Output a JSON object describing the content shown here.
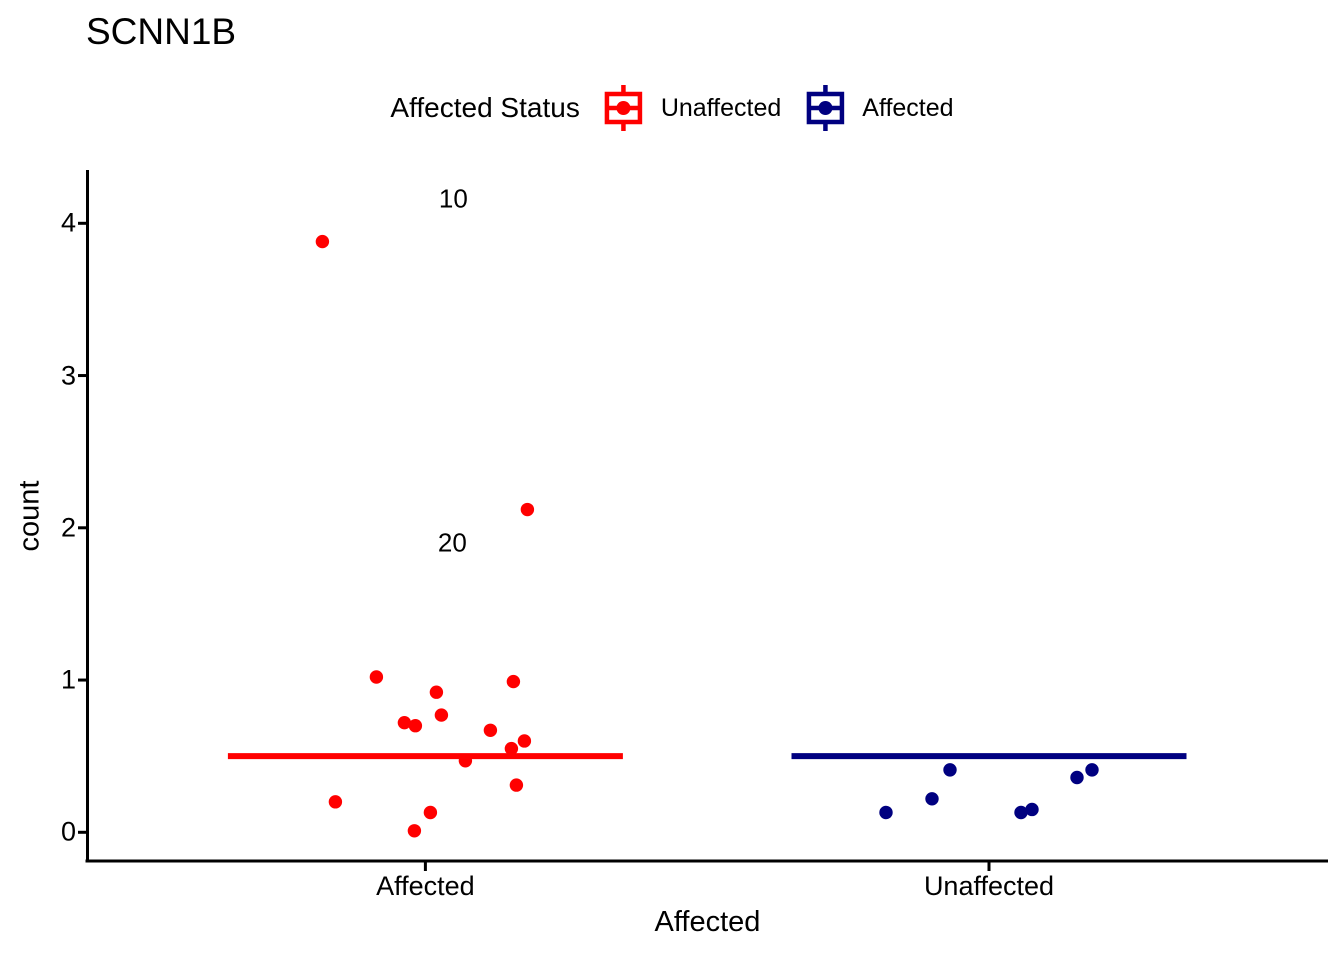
{
  "title": "SCNN1B",
  "legend": {
    "title": "Affected Status",
    "items": [
      {
        "label": "Unaffected",
        "color": "#FF0000"
      },
      {
        "label": "Affected",
        "color": "#000080"
      }
    ]
  },
  "axes": {
    "y": {
      "label": "count"
    },
    "x": {
      "label": "Affected"
    }
  },
  "chart_data": {
    "type": "scatter",
    "title": "SCNN1B",
    "xlabel": "Affected",
    "ylabel": "count",
    "categories": [
      "Affected",
      "Unaffected"
    ],
    "yticks": [
      0,
      1,
      2,
      3,
      4
    ],
    "ylim": [
      0,
      4.34
    ],
    "grid": false,
    "legend_position": "top",
    "legend_title": "Affected Status",
    "legend_entries": [
      "Unaffected",
      "Affected"
    ],
    "series": [
      {
        "name": "Unaffected",
        "color": "#FF0000",
        "category": "Affected",
        "points_dx_value": [
          [
            -103,
            3.88
          ],
          [
            102,
            2.12
          ],
          [
            -49,
            1.02
          ],
          [
            88,
            0.99
          ],
          [
            11,
            0.92
          ],
          [
            16,
            0.77
          ],
          [
            -21,
            0.72
          ],
          [
            -10,
            0.7
          ],
          [
            65,
            0.67
          ],
          [
            99,
            0.6
          ],
          [
            86,
            0.55
          ],
          [
            40,
            0.47
          ],
          [
            91,
            0.31
          ],
          [
            -90,
            0.2
          ],
          [
            5,
            0.13
          ],
          [
            -11,
            0.01
          ]
        ]
      },
      {
        "name": "Affected",
        "color": "#000080",
        "category": "Unaffected",
        "points_dx_value": [
          [
            -103,
            0.13
          ],
          [
            -57,
            0.22
          ],
          [
            -39,
            0.41
          ],
          [
            32,
            0.13
          ],
          [
            43,
            0.15
          ],
          [
            88,
            0.36
          ],
          [
            103,
            0.41
          ]
        ]
      }
    ],
    "crossbars": [
      {
        "category": "Affected",
        "y": 0.5,
        "color": "#FF0000"
      },
      {
        "category": "Unaffected",
        "y": 0.5,
        "color": "#000080"
      }
    ],
    "annotations": [
      {
        "text": "10",
        "category": "Affected",
        "dx": 28,
        "y": 4.16
      },
      {
        "text": "20",
        "category": "Affected",
        "dx": 27,
        "y": 1.9
      }
    ]
  }
}
